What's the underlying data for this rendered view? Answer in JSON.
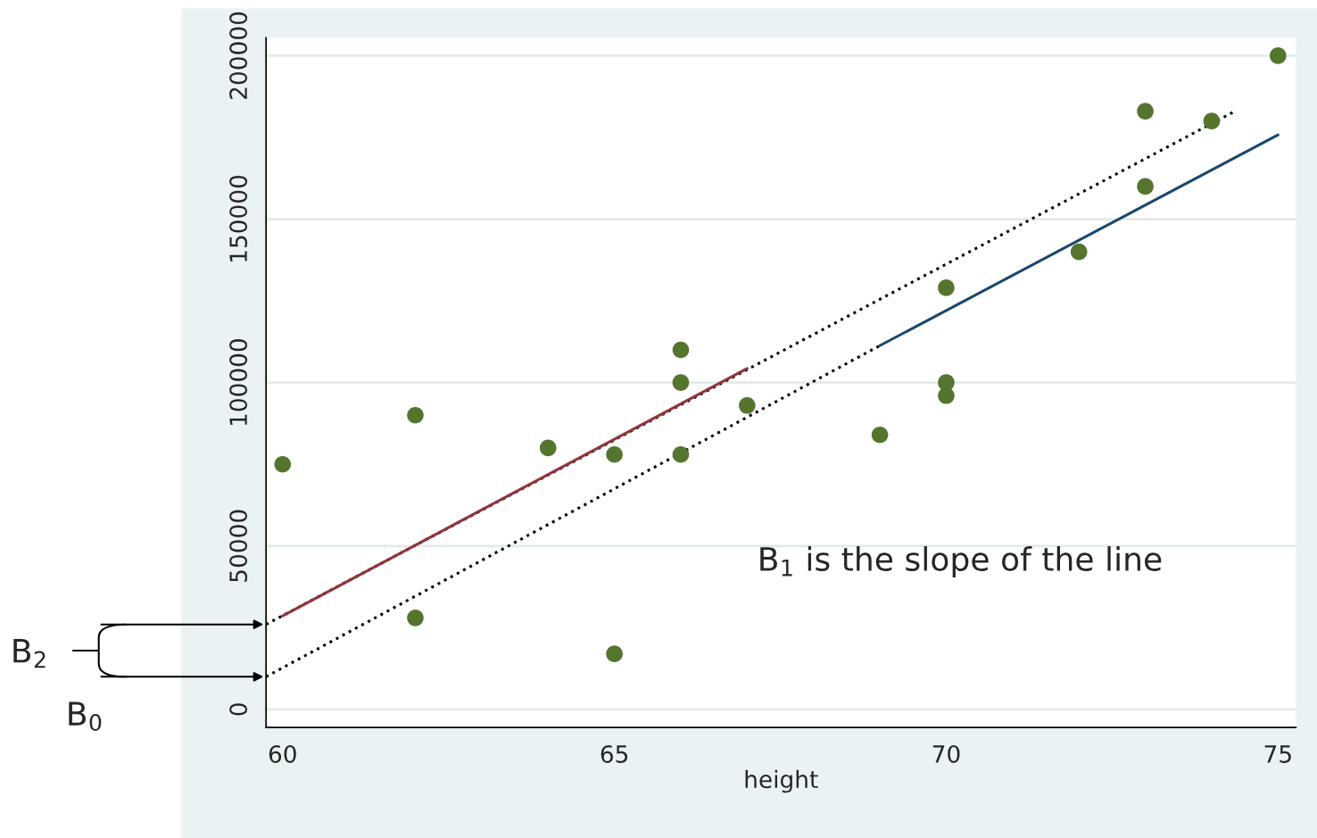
{
  "chart_data": {
    "type": "scatter",
    "xlabel": "height",
    "xlim": [
      59.75,
      75.27
    ],
    "ylim": [
      -5500,
      205500
    ],
    "xticks": [
      60,
      65,
      70,
      75
    ],
    "yticks": [
      0,
      50000,
      100000,
      150000,
      200000
    ],
    "grid": "y",
    "legend": false,
    "tick_labels": "xy",
    "series": [
      {
        "color": "#55752f",
        "marker": "circle",
        "x": [
          60,
          62,
          62,
          64,
          65,
          65,
          66,
          66,
          66,
          67,
          69,
          70,
          70,
          70,
          72,
          73,
          73,
          74,
          75
        ],
        "values": [
          75000,
          90000,
          28000,
          80000,
          78000,
          17000,
          110000,
          100000,
          78000,
          93000,
          84000,
          129000,
          100000,
          96000,
          140000,
          183000,
          160000,
          180000,
          200000
        ]
      },
      {
        "type": "line",
        "color": "#000000",
        "line_style": "dotted",
        "x": [
          59.75,
          74.35
        ],
        "values": [
          26000,
          183000
        ]
      },
      {
        "type": "line",
        "color": "#000000",
        "line_style": "dotted",
        "x": [
          59.75,
          69
        ],
        "values": [
          10000,
          111300
        ]
      },
      {
        "type": "line",
        "color": "#90353b",
        "line_style": "solid",
        "x": [
          60,
          67
        ],
        "values": [
          28600,
          104300
        ]
      },
      {
        "type": "line",
        "color": "#1a476f",
        "line_style": "solid",
        "x": [
          69,
          75
        ],
        "values": [
          111300,
          175800
        ]
      }
    ],
    "annotations": [
      "B$_{1}$ is the slope of the line",
      "B$_{2}$",
      "B$_{0}$"
    ]
  }
}
